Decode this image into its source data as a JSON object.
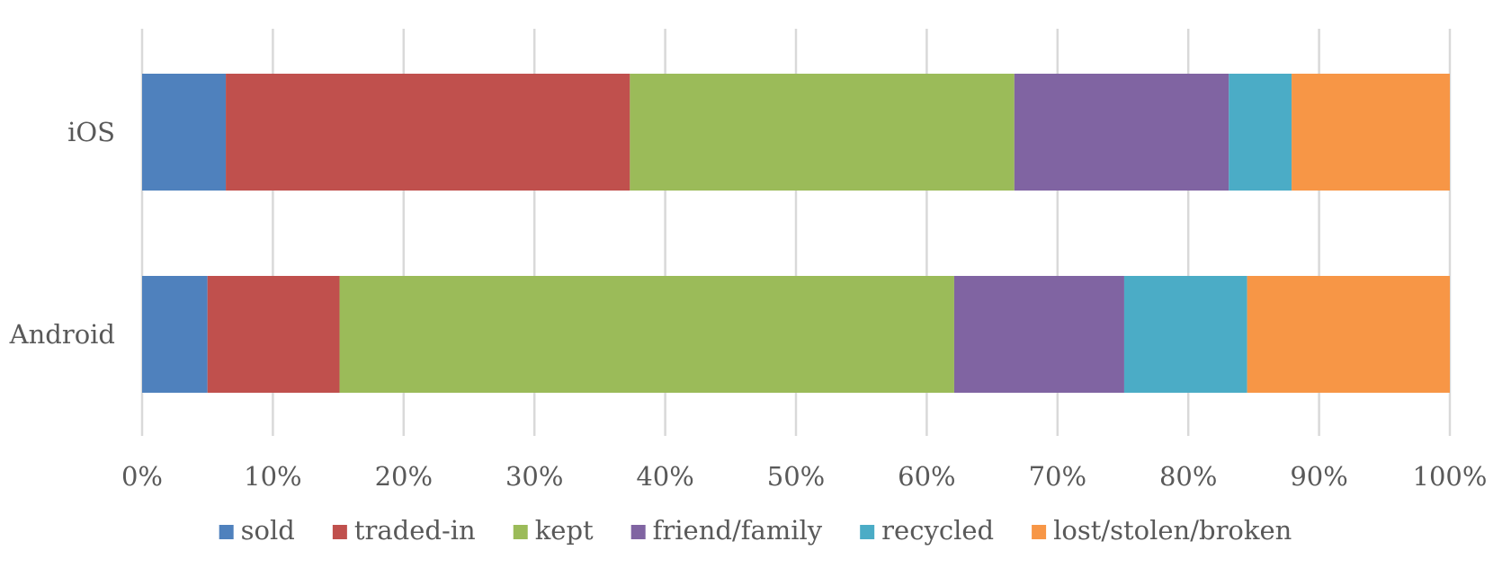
{
  "chart_data": {
    "type": "bar",
    "orientation": "horizontal",
    "stacked": "percent",
    "title": "",
    "xlabel": "",
    "ylabel": "",
    "categories": [
      "iOS",
      "Android"
    ],
    "xlim": [
      0,
      100
    ],
    "x_ticks": [
      "0%",
      "10%",
      "20%",
      "30%",
      "40%",
      "50%",
      "60%",
      "70%",
      "80%",
      "90%",
      "100%"
    ],
    "grid": true,
    "legend_position": "bottom",
    "series": [
      {
        "name": "sold",
        "color": "#4f81bd",
        "values": [
          6.4,
          5.0
        ]
      },
      {
        "name": "traded-in",
        "color": "#c0504d",
        "values": [
          30.9,
          10.1
        ]
      },
      {
        "name": "kept",
        "color": "#9bbb59",
        "values": [
          29.4,
          47.0
        ]
      },
      {
        "name": "friend/family",
        "color": "#8064a2",
        "values": [
          16.4,
          13.0
        ]
      },
      {
        "name": "recycled",
        "color": "#4bacc6",
        "values": [
          4.8,
          9.4
        ]
      },
      {
        "name": "lost/stolen/broken",
        "color": "#f79646",
        "values": [
          12.1,
          15.5
        ]
      }
    ]
  }
}
